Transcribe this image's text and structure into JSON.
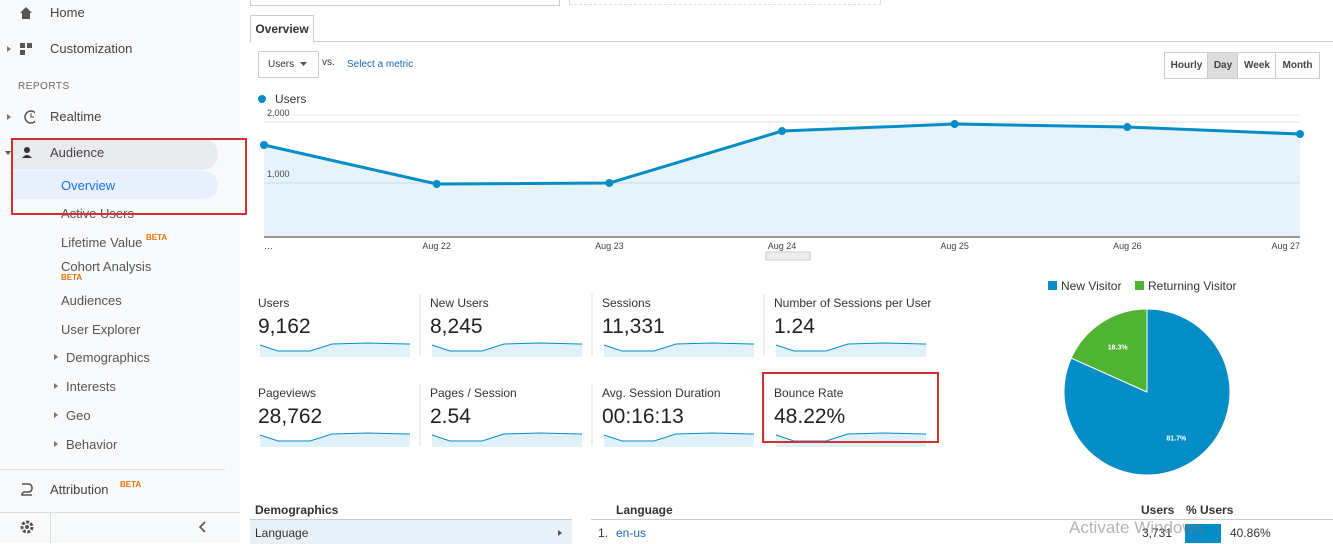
{
  "sidebar": {
    "items": [
      "Home",
      "Customization"
    ],
    "section": "REPORTS",
    "reports": [
      "Realtime",
      "Audience"
    ],
    "audience": [
      "Overview",
      "Active Users",
      "Lifetime Value",
      "Cohort Analysis",
      "Audiences",
      "User Explorer",
      "Demographics",
      "Interests",
      "Geo",
      "Behavior"
    ],
    "badge": "BETA",
    "attribution": "Attribution"
  },
  "tab": "Overview",
  "controls": {
    "metric": "Users",
    "vs": "vs.",
    "select": "Select a metric",
    "granularity": [
      "Hourly",
      "Day",
      "Week",
      "Month"
    ]
  },
  "cards": [
    {
      "name": "Users",
      "value": "9,162"
    },
    {
      "name": "New Users",
      "value": "8,245"
    },
    {
      "name": "Sessions",
      "value": "11,331"
    },
    {
      "name": "Number of Sessions per User",
      "value": "1.24"
    },
    {
      "name": "Pageviews",
      "value": "28,762"
    },
    {
      "name": "Pages / Session",
      "value": "2.54"
    },
    {
      "name": "Avg. Session Duration",
      "value": "00:16:13"
    },
    {
      "name": "Bounce Rate",
      "value": "48.22%"
    }
  ],
  "chart_data": [
    {
      "type": "line",
      "categories": [
        "…",
        "Aug 22",
        "Aug 23",
        "Aug 24",
        "Aug 25",
        "Aug 26",
        "Aug 27"
      ],
      "series": [
        {
          "name": "Users",
          "color": "#058dc7",
          "values": [
            1623,
            984,
            1000,
            1852,
            1967,
            1918,
            1803
          ]
        }
      ],
      "ylim": [
        115,
        2115
      ],
      "yticks": [
        {
          "value": 1000,
          "label": "1,000"
        },
        {
          "value": 2000,
          "label": "2,000"
        }
      ],
      "grid": true
    },
    {
      "type": "pie",
      "categories": [
        "New Visitor",
        "Returning Visitor"
      ],
      "values": [
        81.7,
        18.3
      ],
      "value_labels": [
        "81.7%",
        "18.3%"
      ],
      "colors": [
        "#058dc7",
        "#50b432"
      ]
    }
  ],
  "table": {
    "left_title": "Demographics",
    "left_row": "Language",
    "header": [
      "Language",
      "Users",
      "% Users"
    ],
    "rows": [
      [
        "1.",
        "en-us",
        "3,731",
        "40.86%"
      ]
    ]
  },
  "watermark": "Activate Windows"
}
